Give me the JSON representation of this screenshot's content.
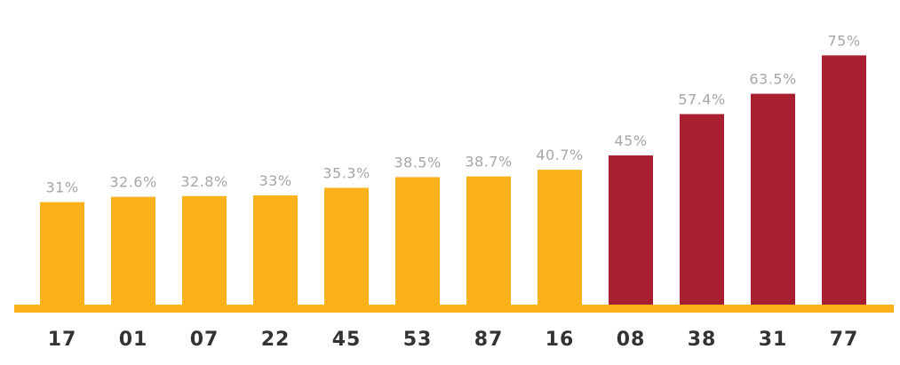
{
  "chart_data": {
    "type": "bar",
    "title": "",
    "xlabel": "",
    "ylabel": "",
    "ylim": [
      0,
      80
    ],
    "grid": false,
    "legend": "none",
    "categories": [
      "17",
      "01",
      "07",
      "22",
      "45",
      "53",
      "87",
      "16",
      "08",
      "38",
      "31",
      "77"
    ],
    "values": [
      31,
      32.6,
      32.8,
      33,
      35.3,
      38.5,
      38.7,
      40.7,
      45,
      57.4,
      63.5,
      75
    ],
    "value_labels": [
      "31%",
      "32.6%",
      "32.8%",
      "33%",
      "35.3%",
      "38.5%",
      "38.7%",
      "40.7%",
      "45%",
      "57.4%",
      "63.5%",
      "75%"
    ],
    "bar_colors": [
      "#FBB11A",
      "#FBB11A",
      "#FBB11A",
      "#FBB11A",
      "#FBB11A",
      "#FBB11A",
      "#FBB11A",
      "#FBB11A",
      "#A81F32",
      "#A81F32",
      "#A81F32",
      "#A81F32"
    ]
  },
  "colors": {
    "baseline": "#FBB11A",
    "value_label": "#A6A6A6",
    "category_label": "#333333"
  }
}
